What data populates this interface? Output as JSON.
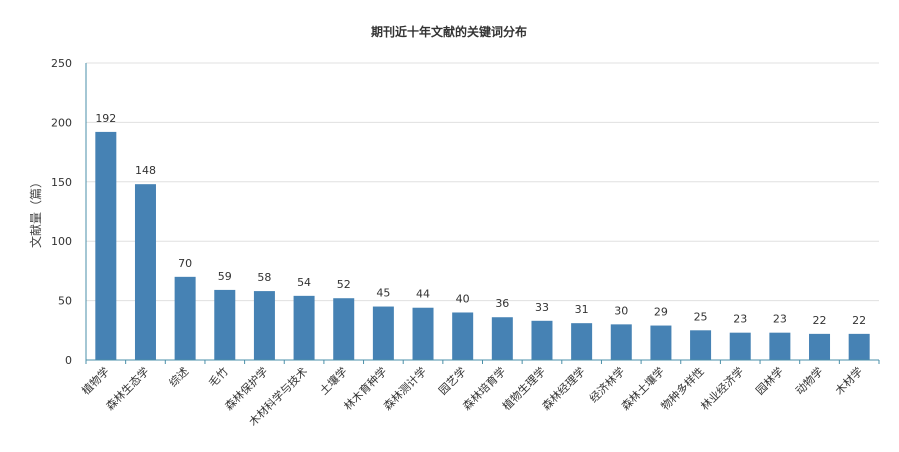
{
  "chart_data": {
    "type": "bar",
    "title": "期刊近十年文献的关键词分布",
    "xlabel": "",
    "ylabel": "文献量（篇）",
    "ylim": [
      0,
      250
    ],
    "yticks": [
      0,
      50,
      100,
      150,
      200,
      250
    ],
    "grid": true,
    "categories": [
      "植物学",
      "森林生态学",
      "综述",
      "毛竹",
      "森林保护学",
      "木材科学与技术",
      "土壤学",
      "林木育种学",
      "森林测计学",
      "园艺学",
      "森林培育学",
      "植物生理学",
      "森林经理学",
      "经济林学",
      "森林土壤学",
      "物种多样性",
      "林业经济学",
      "园林学",
      "动物学",
      "木材学"
    ],
    "values": [
      192,
      148,
      70,
      59,
      58,
      54,
      52,
      45,
      44,
      40,
      36,
      33,
      31,
      30,
      29,
      25,
      23,
      23,
      22,
      22
    ],
    "colors": {
      "bar": "#4682b4",
      "axis": "#4a8fa8",
      "grid": "#e0e0e0",
      "text": "#333333",
      "title": "#333333"
    }
  }
}
